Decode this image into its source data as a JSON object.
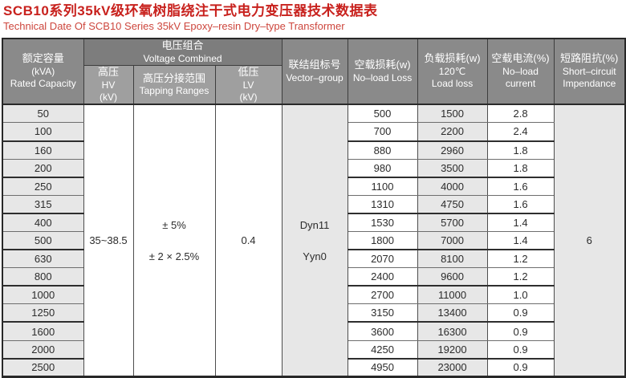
{
  "title": {
    "zh": "SCB10系列35kV级环氧树脂绕注干式电力变压器技术数据表",
    "en": "Technical Date Of SCB10 Series 35kV Epoxy–resin Dry–type Transformer"
  },
  "colors": {
    "title_red": "#c8211d",
    "subtitle_red": "#cd463d",
    "header_group_gray": "#7d7d7d",
    "header_main_gray": "#8a8a8a",
    "header_sub_gray": "#9f9f9f",
    "shaded_cell_gray": "#e7e7e7"
  },
  "table": {
    "headers": {
      "rated_capacity": {
        "zh": "额定容量",
        "unit": "(kVA)",
        "en": "Rated Capacity"
      },
      "voltage_combined": {
        "zh": "电压组合",
        "en": "Voltage Combined"
      },
      "hv": {
        "zh": "高压",
        "en": "HV",
        "unit": "(kV)"
      },
      "tapping": {
        "zh": "高压分接范围",
        "en": "Tapping Ranges"
      },
      "lv": {
        "zh": "低压",
        "en": "LV",
        "unit": "(kV)"
      },
      "vector_group": {
        "zh": "联结组标号",
        "en": "Vector–group"
      },
      "noload_loss": {
        "zh": "空载损耗(w)",
        "en": "No–load Loss"
      },
      "load_loss": {
        "zh": "负载损耗(w)",
        "temp": "120℃",
        "en": "Load loss"
      },
      "noload_current": {
        "zh": "空载电流(%)",
        "en1": "No–load",
        "en2": "current"
      },
      "impedance": {
        "zh": "短路阻抗(%)",
        "en1": "Short–circuit",
        "en2": "Impendance"
      }
    },
    "merged": {
      "hv_value": "35~38.5",
      "tapping_values": [
        "± 5%",
        "± 2 × 2.5%"
      ],
      "lv_value": "0.4",
      "vector_values": [
        "Dyn11",
        "Yyn0"
      ],
      "impedance_value": "6"
    },
    "rows": [
      {
        "kva": "50",
        "noload": "500",
        "load": "1500",
        "current": "2.8"
      },
      {
        "kva": "100",
        "noload": "700",
        "load": "2200",
        "current": "2.4"
      },
      {
        "kva": "160",
        "noload": "880",
        "load": "2960",
        "current": "1.8"
      },
      {
        "kva": "200",
        "noload": "980",
        "load": "3500",
        "current": "1.8"
      },
      {
        "kva": "250",
        "noload": "1100",
        "load": "4000",
        "current": "1.6"
      },
      {
        "kva": "315",
        "noload": "1310",
        "load": "4750",
        "current": "1.6"
      },
      {
        "kva": "400",
        "noload": "1530",
        "load": "5700",
        "current": "1.4"
      },
      {
        "kva": "500",
        "noload": "1800",
        "load": "7000",
        "current": "1.4"
      },
      {
        "kva": "630",
        "noload": "2070",
        "load": "8100",
        "current": "1.2"
      },
      {
        "kva": "800",
        "noload": "2400",
        "load": "9600",
        "current": "1.2"
      },
      {
        "kva": "1000",
        "noload": "2700",
        "load": "11000",
        "current": "1.0"
      },
      {
        "kva": "1250",
        "noload": "3150",
        "load": "13400",
        "current": "0.9"
      },
      {
        "kva": "1600",
        "noload": "3600",
        "load": "16300",
        "current": "0.9"
      },
      {
        "kva": "2000",
        "noload": "4250",
        "load": "19200",
        "current": "0.9"
      },
      {
        "kva": "2500",
        "noload": "4950",
        "load": "23000",
        "current": "0.9"
      }
    ]
  }
}
